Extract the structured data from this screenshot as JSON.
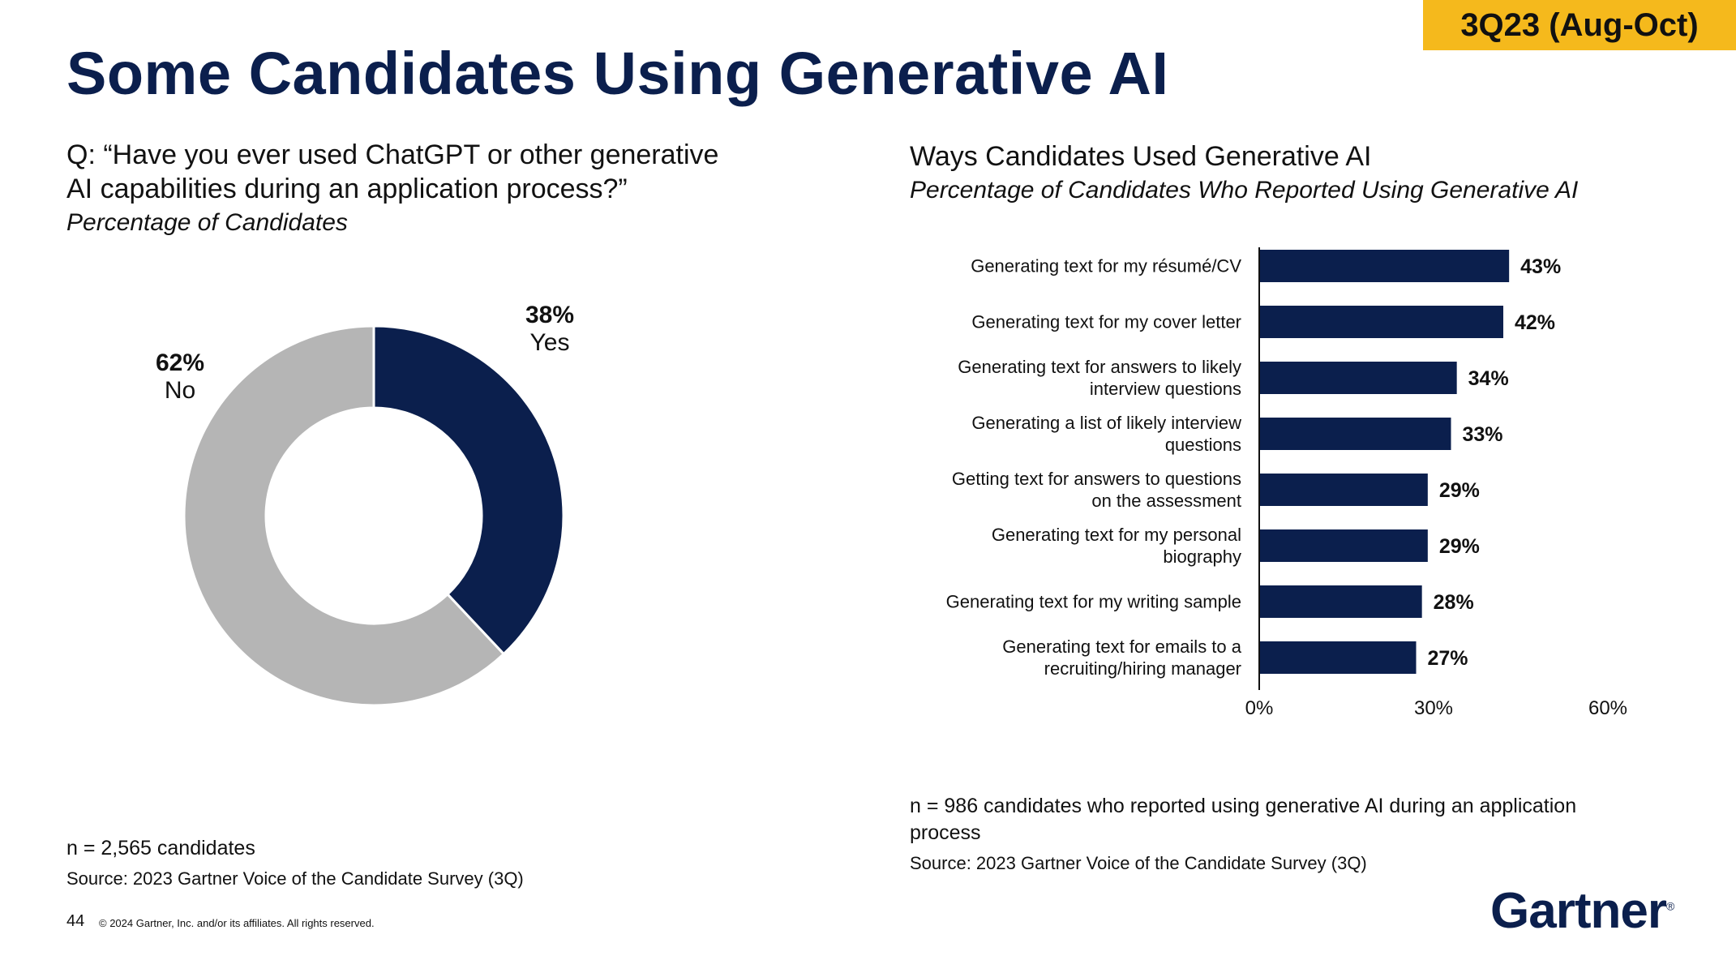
{
  "header": {
    "period_badge": "3Q23 (Aug-Oct)",
    "title": "Some Candidates Using Generative AI"
  },
  "left_panel": {
    "question_line1": "Q: “Have you ever used ChatGPT or other generative",
    "question_line2": "AI capabilities during an application process?”",
    "subtitle": "Percentage of Candidates",
    "note": "n = 2,565 candidates",
    "source": "Source: 2023 Gartner Voice of the Candidate Survey (3Q)"
  },
  "right_panel": {
    "title": "Ways Candidates Used Generative AI",
    "subtitle": "Percentage of Candidates Who Reported Using Generative AI",
    "note_line1": "n = 986 candidates who reported using generative AI during an application",
    "note_line2": "process",
    "source": "Source: 2023 Gartner Voice of the Candidate Survey (3Q)"
  },
  "footer": {
    "page_number": "44",
    "copyright": "© 2024 Gartner, Inc. and/or its affiliates. All rights reserved.",
    "logo_text": "Gartner",
    "logo_mark": "®"
  },
  "colors": {
    "navy": "#0b1f4d",
    "gray": "#b5b5b5",
    "badge": "#f5b91c"
  },
  "chart_data": [
    {
      "type": "pie",
      "style": "donut",
      "slices": [
        {
          "label": "Yes",
          "value": 38,
          "value_label": "38%",
          "color": "#0b1f4d"
        },
        {
          "label": "No",
          "value": 62,
          "value_label": "62%",
          "color": "#b5b5b5"
        }
      ]
    },
    {
      "type": "bar",
      "orientation": "horizontal",
      "categories": [
        [
          "Generating text for my résumé/CV"
        ],
        [
          "Generating text for my cover letter"
        ],
        [
          "Generating text for answers to likely",
          "interview questions"
        ],
        [
          "Generating a list of likely interview",
          "questions"
        ],
        [
          "Getting text for answers to questions",
          "on the assessment"
        ],
        [
          "Generating text for my personal",
          "biography"
        ],
        [
          "Generating text for my writing sample"
        ],
        [
          "Generating text for emails to a",
          "recruiting/hiring manager"
        ]
      ],
      "values": [
        43,
        42,
        34,
        33,
        29,
        29,
        28,
        27
      ],
      "value_labels": [
        "43%",
        "42%",
        "34%",
        "33%",
        "29%",
        "29%",
        "28%",
        "27%"
      ],
      "xlim": [
        0,
        60
      ],
      "xticks": [
        {
          "value": 0,
          "label": "0%"
        },
        {
          "value": 30,
          "label": "30%"
        },
        {
          "value": 60,
          "label": "60%"
        }
      ],
      "grid": false,
      "bar_color": "#0b1f4d"
    }
  ]
}
